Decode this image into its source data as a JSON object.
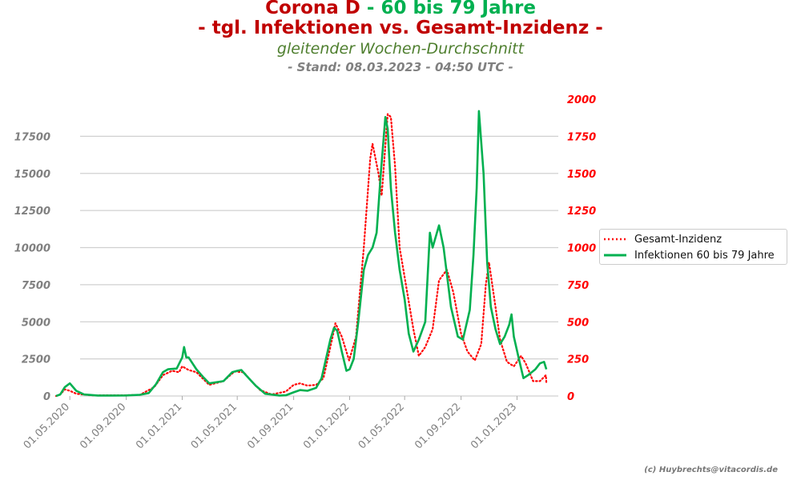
{
  "header": {
    "title_part1": "Corona D",
    "title_part2": " - 60 bis 79 Jahre",
    "subtitle": "- tgl. Infektionen vs. Gesamt-Inzidenz  -",
    "subtitle2": "gleitender Wochen-Durchschnitt",
    "stand": "- Stand: 08.03.2023 - 04:50 UTC -"
  },
  "credit": "(c) Huybrechts@vitacordis.de",
  "colors": {
    "red": "#c00000",
    "green": "#00b050",
    "olive": "#4f7f2f",
    "gray": "#808080",
    "inz_red": "#ff0000"
  },
  "chart_data": {
    "type": "line",
    "x_axis": {
      "type": "date",
      "ticks": [
        "01.05.2020",
        "01.09.2020",
        "01.01.2021",
        "01.05.2021",
        "01.09.2021",
        "01.01.2022",
        "01.05.2022",
        "01.09.2022",
        "01.01.2023"
      ]
    },
    "y_left": {
      "range": [
        0,
        20000
      ],
      "ticks": [
        "0",
        "2500",
        "5000",
        "7500",
        "10000",
        "12500",
        "15000",
        "17500"
      ],
      "grid": true
    },
    "y_right": {
      "range": [
        0,
        2000
      ],
      "ticks": [
        "0",
        "250",
        "500",
        "750",
        "1000",
        "1250",
        "1500",
        "1750",
        "2000"
      ]
    },
    "legend_position": "right",
    "series": [
      {
        "name": "Gesamt-Inzidenz",
        "axis": "right",
        "style": "dotted",
        "color": "#ff0000",
        "points": [
          [
            "2020-04-01",
            0
          ],
          [
            "2020-04-10",
            10
          ],
          [
            "2020-04-20",
            45
          ],
          [
            "2020-05-01",
            35
          ],
          [
            "2020-05-15",
            15
          ],
          [
            "2020-06-15",
            5
          ],
          [
            "2020-08-01",
            5
          ],
          [
            "2020-09-01",
            5
          ],
          [
            "2020-10-01",
            8
          ],
          [
            "2020-11-01",
            60
          ],
          [
            "2020-11-20",
            140
          ],
          [
            "2020-12-10",
            170
          ],
          [
            "2020-12-25",
            160
          ],
          [
            "2021-01-01",
            200
          ],
          [
            "2021-01-15",
            175
          ],
          [
            "2021-02-01",
            160
          ],
          [
            "2021-03-01",
            75
          ],
          [
            "2021-04-01",
            100
          ],
          [
            "2021-04-25",
            165
          ],
          [
            "2021-05-15",
            160
          ],
          [
            "2021-06-01",
            100
          ],
          [
            "2021-06-20",
            40
          ],
          [
            "2021-07-15",
            10
          ],
          [
            "2021-08-15",
            30
          ],
          [
            "2021-09-01",
            75
          ],
          [
            "2021-09-15",
            85
          ],
          [
            "2021-10-01",
            70
          ],
          [
            "2021-10-20",
            75
          ],
          [
            "2021-11-05",
            120
          ],
          [
            "2021-11-25",
            400
          ],
          [
            "2021-12-01",
            490
          ],
          [
            "2021-12-15",
            400
          ],
          [
            "2021-12-31",
            240
          ],
          [
            "2022-01-15",
            400
          ],
          [
            "2022-02-01",
            1000
          ],
          [
            "2022-02-15",
            1600
          ],
          [
            "2022-02-20",
            1700
          ],
          [
            "2022-03-05",
            1500
          ],
          [
            "2022-03-12",
            1350
          ],
          [
            "2022-03-25",
            1900
          ],
          [
            "2022-04-01",
            1880
          ],
          [
            "2022-04-10",
            1550
          ],
          [
            "2022-04-20",
            1000
          ],
          [
            "2022-05-01",
            800
          ],
          [
            "2022-05-20",
            450
          ],
          [
            "2022-06-01",
            270
          ],
          [
            "2022-06-15",
            330
          ],
          [
            "2022-07-01",
            450
          ],
          [
            "2022-07-15",
            780
          ],
          [
            "2022-08-01",
            850
          ],
          [
            "2022-08-15",
            700
          ],
          [
            "2022-09-01",
            420
          ],
          [
            "2022-09-15",
            300
          ],
          [
            "2022-10-01",
            240
          ],
          [
            "2022-10-15",
            350
          ],
          [
            "2022-10-25",
            750
          ],
          [
            "2022-11-01",
            900
          ],
          [
            "2022-11-15",
            600
          ],
          [
            "2022-11-25",
            380
          ],
          [
            "2022-12-10",
            230
          ],
          [
            "2022-12-25",
            200
          ],
          [
            "2023-01-10",
            270
          ],
          [
            "2023-01-20",
            220
          ],
          [
            "2023-02-05",
            100
          ],
          [
            "2023-02-20",
            100
          ],
          [
            "2023-03-05",
            140
          ],
          [
            "2023-03-06",
            90
          ]
        ]
      },
      {
        "name": "Infektionen 60 bis 79 Jahre",
        "axis": "left",
        "style": "solid",
        "color": "#00b050",
        "points": [
          [
            "2020-04-01",
            0
          ],
          [
            "2020-04-10",
            100
          ],
          [
            "2020-04-20",
            600
          ],
          [
            "2020-05-01",
            850
          ],
          [
            "2020-05-15",
            350
          ],
          [
            "2020-06-01",
            100
          ],
          [
            "2020-07-01",
            30
          ],
          [
            "2020-08-01",
            30
          ],
          [
            "2020-09-01",
            40
          ],
          [
            "2020-10-01",
            80
          ],
          [
            "2020-10-20",
            200
          ],
          [
            "2020-11-05",
            800
          ],
          [
            "2020-11-20",
            1600
          ],
          [
            "2020-12-01",
            1800
          ],
          [
            "2020-12-20",
            1850
          ],
          [
            "2021-01-01",
            2600
          ],
          [
            "2021-01-05",
            3300
          ],
          [
            "2021-01-10",
            2600
          ],
          [
            "2021-01-15",
            2600
          ],
          [
            "2021-02-01",
            1800
          ],
          [
            "2021-02-15",
            1300
          ],
          [
            "2021-03-01",
            850
          ],
          [
            "2021-04-01",
            1000
          ],
          [
            "2021-04-20",
            1600
          ],
          [
            "2021-05-01",
            1700
          ],
          [
            "2021-05-10",
            1750
          ],
          [
            "2021-05-20",
            1400
          ],
          [
            "2021-06-10",
            700
          ],
          [
            "2021-07-01",
            150
          ],
          [
            "2021-08-01",
            30
          ],
          [
            "2021-08-15",
            50
          ],
          [
            "2021-09-01",
            250
          ],
          [
            "2021-09-15",
            400
          ],
          [
            "2021-10-01",
            350
          ],
          [
            "2021-10-20",
            550
          ],
          [
            "2021-11-01",
            1200
          ],
          [
            "2021-11-20",
            3800
          ],
          [
            "2021-11-28",
            4600
          ],
          [
            "2021-12-05",
            4400
          ],
          [
            "2021-12-15",
            3000
          ],
          [
            "2021-12-25",
            1700
          ],
          [
            "2022-01-01",
            1800
          ],
          [
            "2022-01-10",
            2500
          ],
          [
            "2022-01-20",
            5000
          ],
          [
            "2022-02-01",
            8500
          ],
          [
            "2022-02-10",
            9500
          ],
          [
            "2022-02-20",
            10000
          ],
          [
            "2022-03-01",
            11000
          ],
          [
            "2022-03-10",
            15000
          ],
          [
            "2022-03-20",
            18800
          ],
          [
            "2022-03-25",
            18000
          ],
          [
            "2022-04-01",
            14000
          ],
          [
            "2022-04-10",
            11000
          ],
          [
            "2022-04-20",
            8500
          ],
          [
            "2022-05-01",
            6500
          ],
          [
            "2022-05-10",
            4200
          ],
          [
            "2022-05-20",
            3000
          ],
          [
            "2022-06-01",
            3800
          ],
          [
            "2022-06-15",
            5000
          ],
          [
            "2022-06-25",
            11000
          ],
          [
            "2022-07-01",
            10000
          ],
          [
            "2022-07-15",
            11500
          ],
          [
            "2022-07-25",
            10000
          ],
          [
            "2022-08-10",
            6000
          ],
          [
            "2022-08-25",
            4000
          ],
          [
            "2022-09-05",
            3800
          ],
          [
            "2022-09-20",
            5800
          ],
          [
            "2022-09-28",
            9500
          ],
          [
            "2022-10-05",
            14000
          ],
          [
            "2022-10-10",
            19200
          ],
          [
            "2022-10-20",
            15000
          ],
          [
            "2022-10-28",
            9000
          ],
          [
            "2022-11-05",
            6000
          ],
          [
            "2022-11-15",
            4500
          ],
          [
            "2022-11-25",
            3500
          ],
          [
            "2022-12-05",
            4000
          ],
          [
            "2022-12-15",
            4800
          ],
          [
            "2022-12-20",
            5500
          ],
          [
            "2022-12-25",
            4000
          ],
          [
            "2023-01-05",
            2500
          ],
          [
            "2023-01-15",
            1200
          ],
          [
            "2023-01-25",
            1400
          ],
          [
            "2023-02-10",
            1800
          ],
          [
            "2023-02-20",
            2200
          ],
          [
            "2023-03-01",
            2300
          ],
          [
            "2023-03-06",
            1800
          ]
        ]
      }
    ]
  }
}
